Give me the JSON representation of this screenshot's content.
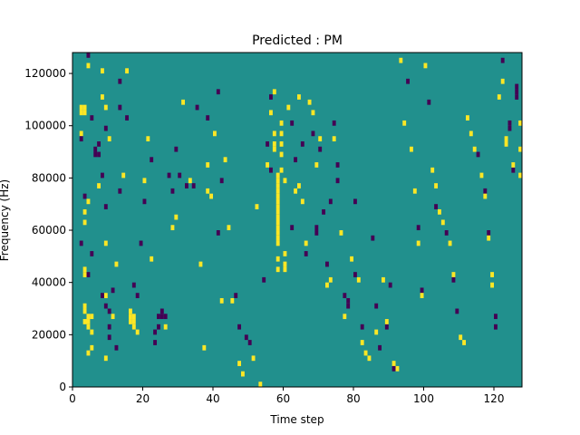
{
  "figure": {
    "background": "#ffffff"
  },
  "chart_data": {
    "type": "heatmap",
    "title": "Predicted : PM",
    "xlabel": "Time step",
    "ylabel": "Frequency (Hz)",
    "xlim": [
      0,
      128
    ],
    "ylim": [
      0,
      128000
    ],
    "xticks": [
      0,
      20,
      40,
      60,
      80,
      100,
      120
    ],
    "yticks": [
      0,
      20000,
      40000,
      60000,
      80000,
      100000,
      120000
    ],
    "xtick_labels": [
      "0",
      "20",
      "40",
      "60",
      "80",
      "100",
      "120"
    ],
    "ytick_labels": [
      "0",
      "20000",
      "40000",
      "60000",
      "80000",
      "100000",
      "120000"
    ],
    "grid": false,
    "legend": "none",
    "grid_size": {
      "time_steps": 128,
      "frequency_bins": 64
    },
    "colormap": "viridis",
    "palette": {
      "-1": "#440154",
      "0": "#21908d",
      "1": "#fde725"
    },
    "background_value": 0,
    "cell_value_legend": "cells: [time_step, frequency_bin, value]; bins are 2000 Hz wide; unlisted cells = 0",
    "cells": [
      [
        2,
        52,
        1
      ],
      [
        2,
        53,
        1
      ],
      [
        3,
        52,
        1
      ],
      [
        3,
        53,
        1
      ],
      [
        3,
        36,
        -1
      ],
      [
        4,
        63,
        -1
      ],
      [
        4,
        61,
        1
      ],
      [
        5,
        25,
        -1
      ],
      [
        5,
        10,
        1
      ],
      [
        4,
        21,
        -1
      ],
      [
        2,
        27,
        -1
      ],
      [
        3,
        12,
        1
      ],
      [
        3,
        14,
        1
      ],
      [
        3,
        15,
        1
      ],
      [
        4,
        12,
        1
      ],
      [
        4,
        13,
        1
      ],
      [
        4,
        11,
        1
      ],
      [
        5,
        13,
        1
      ],
      [
        5,
        7,
        1
      ],
      [
        4,
        6,
        1
      ],
      [
        3,
        22,
        1
      ],
      [
        3,
        21,
        1
      ],
      [
        4,
        35,
        1
      ],
      [
        3,
        33,
        1
      ],
      [
        2,
        48,
        1
      ],
      [
        2,
        47,
        -1
      ],
      [
        3,
        31,
        1
      ],
      [
        5,
        51,
        -1
      ],
      [
        6,
        45,
        -1
      ],
      [
        6,
        44,
        -1
      ],
      [
        7,
        38,
        1
      ],
      [
        7,
        46,
        -1
      ],
      [
        8,
        55,
        1
      ],
      [
        8,
        40,
        -1
      ],
      [
        7,
        44,
        -1
      ],
      [
        8,
        60,
        1
      ],
      [
        9,
        53,
        1
      ],
      [
        9,
        49,
        -1
      ],
      [
        10,
        47,
        1
      ],
      [
        9,
        34,
        -1
      ],
      [
        9,
        27,
        1
      ],
      [
        10,
        11,
        -1
      ],
      [
        10,
        9,
        -1
      ],
      [
        9,
        5,
        1
      ],
      [
        9,
        17,
        1
      ],
      [
        8,
        17,
        -1
      ],
      [
        9,
        15,
        -1
      ],
      [
        10,
        14,
        -1
      ],
      [
        11,
        18,
        -1
      ],
      [
        11,
        13,
        1
      ],
      [
        12,
        23,
        1
      ],
      [
        12,
        7,
        -1
      ],
      [
        13,
        37,
        -1
      ],
      [
        13,
        53,
        -1
      ],
      [
        13,
        58,
        -1
      ],
      [
        14,
        40,
        1
      ],
      [
        15,
        51,
        -1
      ],
      [
        15,
        60,
        1
      ],
      [
        16,
        14,
        1
      ],
      [
        16,
        13,
        1
      ],
      [
        16,
        12,
        1
      ],
      [
        17,
        12,
        1
      ],
      [
        17,
        13,
        1
      ],
      [
        17,
        11,
        1
      ],
      [
        18,
        10,
        1
      ],
      [
        18,
        17,
        -1
      ],
      [
        17,
        19,
        -1
      ],
      [
        19,
        27,
        -1
      ],
      [
        20,
        35,
        -1
      ],
      [
        20,
        39,
        1
      ],
      [
        21,
        47,
        1
      ],
      [
        22,
        43,
        -1
      ],
      [
        22,
        24,
        1
      ],
      [
        23,
        10,
        -1
      ],
      [
        23,
        8,
        -1
      ],
      [
        24,
        11,
        -1
      ],
      [
        24,
        13,
        -1
      ],
      [
        25,
        13,
        -1
      ],
      [
        25,
        14,
        -1
      ],
      [
        26,
        13,
        -1
      ],
      [
        26,
        11,
        1
      ],
      [
        27,
        40,
        -1
      ],
      [
        28,
        37,
        -1
      ],
      [
        28,
        30,
        1
      ],
      [
        29,
        32,
        1
      ],
      [
        29,
        45,
        -1
      ],
      [
        30,
        40,
        -1
      ],
      [
        31,
        54,
        1
      ],
      [
        32,
        38,
        -1
      ],
      [
        33,
        39,
        1
      ],
      [
        34,
        38,
        -1
      ],
      [
        35,
        53,
        -1
      ],
      [
        36,
        23,
        1
      ],
      [
        37,
        7,
        1
      ],
      [
        38,
        51,
        -1
      ],
      [
        38,
        42,
        1
      ],
      [
        38,
        37,
        1
      ],
      [
        39,
        36,
        1
      ],
      [
        40,
        48,
        1
      ],
      [
        41,
        29,
        -1
      ],
      [
        41,
        56,
        -1
      ],
      [
        42,
        16,
        1
      ],
      [
        42,
        39,
        -1
      ],
      [
        43,
        43,
        1
      ],
      [
        44,
        30,
        1
      ],
      [
        45,
        16,
        1
      ],
      [
        46,
        17,
        -1
      ],
      [
        47,
        11,
        -1
      ],
      [
        47,
        4,
        1
      ],
      [
        48,
        2,
        1
      ],
      [
        49,
        9,
        -1
      ],
      [
        50,
        8,
        -1
      ],
      [
        51,
        5,
        1
      ],
      [
        52,
        34,
        1
      ],
      [
        53,
        0,
        1
      ],
      [
        54,
        20,
        -1
      ],
      [
        55,
        42,
        1
      ],
      [
        55,
        46,
        -1
      ],
      [
        56,
        41,
        -1
      ],
      [
        56,
        52,
        1
      ],
      [
        56,
        55,
        -1
      ],
      [
        57,
        45,
        1
      ],
      [
        57,
        46,
        1
      ],
      [
        57,
        48,
        1
      ],
      [
        57,
        56,
        1
      ],
      [
        58,
        40,
        1
      ],
      [
        58,
        39,
        1
      ],
      [
        58,
        38,
        1
      ],
      [
        58,
        37,
        1
      ],
      [
        58,
        36,
        1
      ],
      [
        58,
        35,
        1
      ],
      [
        58,
        34,
        1
      ],
      [
        58,
        33,
        1
      ],
      [
        58,
        32,
        1
      ],
      [
        58,
        31,
        1
      ],
      [
        58,
        30,
        1
      ],
      [
        58,
        29,
        1
      ],
      [
        58,
        28,
        1
      ],
      [
        58,
        27,
        1
      ],
      [
        58,
        24,
        1
      ],
      [
        58,
        22,
        1
      ],
      [
        59,
        41,
        1
      ],
      [
        59,
        44,
        1
      ],
      [
        59,
        46,
        1
      ],
      [
        59,
        48,
        1
      ],
      [
        59,
        50,
        1
      ],
      [
        60,
        39,
        1
      ],
      [
        60,
        25,
        1
      ],
      [
        60,
        23,
        1
      ],
      [
        60,
        22,
        1
      ],
      [
        61,
        53,
        1
      ],
      [
        62,
        50,
        -1
      ],
      [
        62,
        30,
        -1
      ],
      [
        63,
        43,
        -1
      ],
      [
        63,
        37,
        1
      ],
      [
        64,
        55,
        1
      ],
      [
        64,
        38,
        1
      ],
      [
        65,
        46,
        -1
      ],
      [
        65,
        35,
        1
      ],
      [
        66,
        27,
        1
      ],
      [
        66,
        25,
        -1
      ],
      [
        67,
        54,
        1
      ],
      [
        68,
        52,
        1
      ],
      [
        68,
        48,
        -1
      ],
      [
        69,
        42,
        1
      ],
      [
        69,
        30,
        -1
      ],
      [
        69,
        29,
        -1
      ],
      [
        70,
        45,
        -1
      ],
      [
        70,
        47,
        1
      ],
      [
        71,
        33,
        -1
      ],
      [
        72,
        23,
        -1
      ],
      [
        72,
        19,
        1
      ],
      [
        73,
        20,
        1
      ],
      [
        73,
        35,
        -1
      ],
      [
        74,
        50,
        -1
      ],
      [
        74,
        47,
        1
      ],
      [
        75,
        42,
        -1
      ],
      [
        75,
        39,
        -1
      ],
      [
        76,
        29,
        1
      ],
      [
        77,
        17,
        -1
      ],
      [
        77,
        13,
        1
      ],
      [
        78,
        15,
        -1
      ],
      [
        78,
        16,
        -1
      ],
      [
        79,
        24,
        1
      ],
      [
        80,
        35,
        -1
      ],
      [
        80,
        21,
        -1
      ],
      [
        81,
        20,
        1
      ],
      [
        82,
        11,
        -1
      ],
      [
        82,
        8,
        1
      ],
      [
        83,
        6,
        1
      ],
      [
        84,
        5,
        1
      ],
      [
        85,
        28,
        -1
      ],
      [
        86,
        15,
        -1
      ],
      [
        86,
        10,
        1
      ],
      [
        87,
        7,
        -1
      ],
      [
        88,
        20,
        1
      ],
      [
        89,
        11,
        -1
      ],
      [
        89,
        12,
        1
      ],
      [
        90,
        19,
        -1
      ],
      [
        91,
        4,
        1
      ],
      [
        91,
        3,
        -1
      ],
      [
        92,
        3,
        1
      ],
      [
        93,
        62,
        1
      ],
      [
        94,
        50,
        1
      ],
      [
        95,
        58,
        -1
      ],
      [
        96,
        45,
        1
      ],
      [
        97,
        37,
        1
      ],
      [
        98,
        30,
        -1
      ],
      [
        98,
        27,
        1
      ],
      [
        99,
        18,
        -1
      ],
      [
        99,
        17,
        1
      ],
      [
        100,
        61,
        1
      ],
      [
        101,
        54,
        -1
      ],
      [
        102,
        41,
        1
      ],
      [
        103,
        34,
        -1
      ],
      [
        103,
        38,
        1
      ],
      [
        104,
        33,
        1
      ],
      [
        105,
        31,
        1
      ],
      [
        106,
        29,
        -1
      ],
      [
        107,
        27,
        1
      ],
      [
        108,
        21,
        1
      ],
      [
        108,
        20,
        -1
      ],
      [
        109,
        14,
        -1
      ],
      [
        110,
        9,
        1
      ],
      [
        111,
        8,
        1
      ],
      [
        112,
        51,
        1
      ],
      [
        113,
        48,
        1
      ],
      [
        114,
        45,
        1
      ],
      [
        115,
        44,
        -1
      ],
      [
        116,
        40,
        1
      ],
      [
        117,
        37,
        -1
      ],
      [
        117,
        36,
        1
      ],
      [
        118,
        29,
        -1
      ],
      [
        118,
        28,
        1
      ],
      [
        119,
        21,
        1
      ],
      [
        119,
        19,
        1
      ],
      [
        120,
        13,
        -1
      ],
      [
        120,
        11,
        -1
      ],
      [
        121,
        55,
        1
      ],
      [
        122,
        58,
        1
      ],
      [
        122,
        62,
        -1
      ],
      [
        123,
        46,
        1
      ],
      [
        123,
        47,
        1
      ],
      [
        124,
        49,
        -1
      ],
      [
        124,
        50,
        -1
      ],
      [
        125,
        41,
        -1
      ],
      [
        125,
        42,
        1
      ],
      [
        126,
        55,
        -1
      ],
      [
        126,
        56,
        -1
      ],
      [
        126,
        57,
        -1
      ],
      [
        127,
        50,
        1
      ],
      [
        127,
        45,
        1
      ],
      [
        127,
        40,
        1
      ]
    ]
  }
}
